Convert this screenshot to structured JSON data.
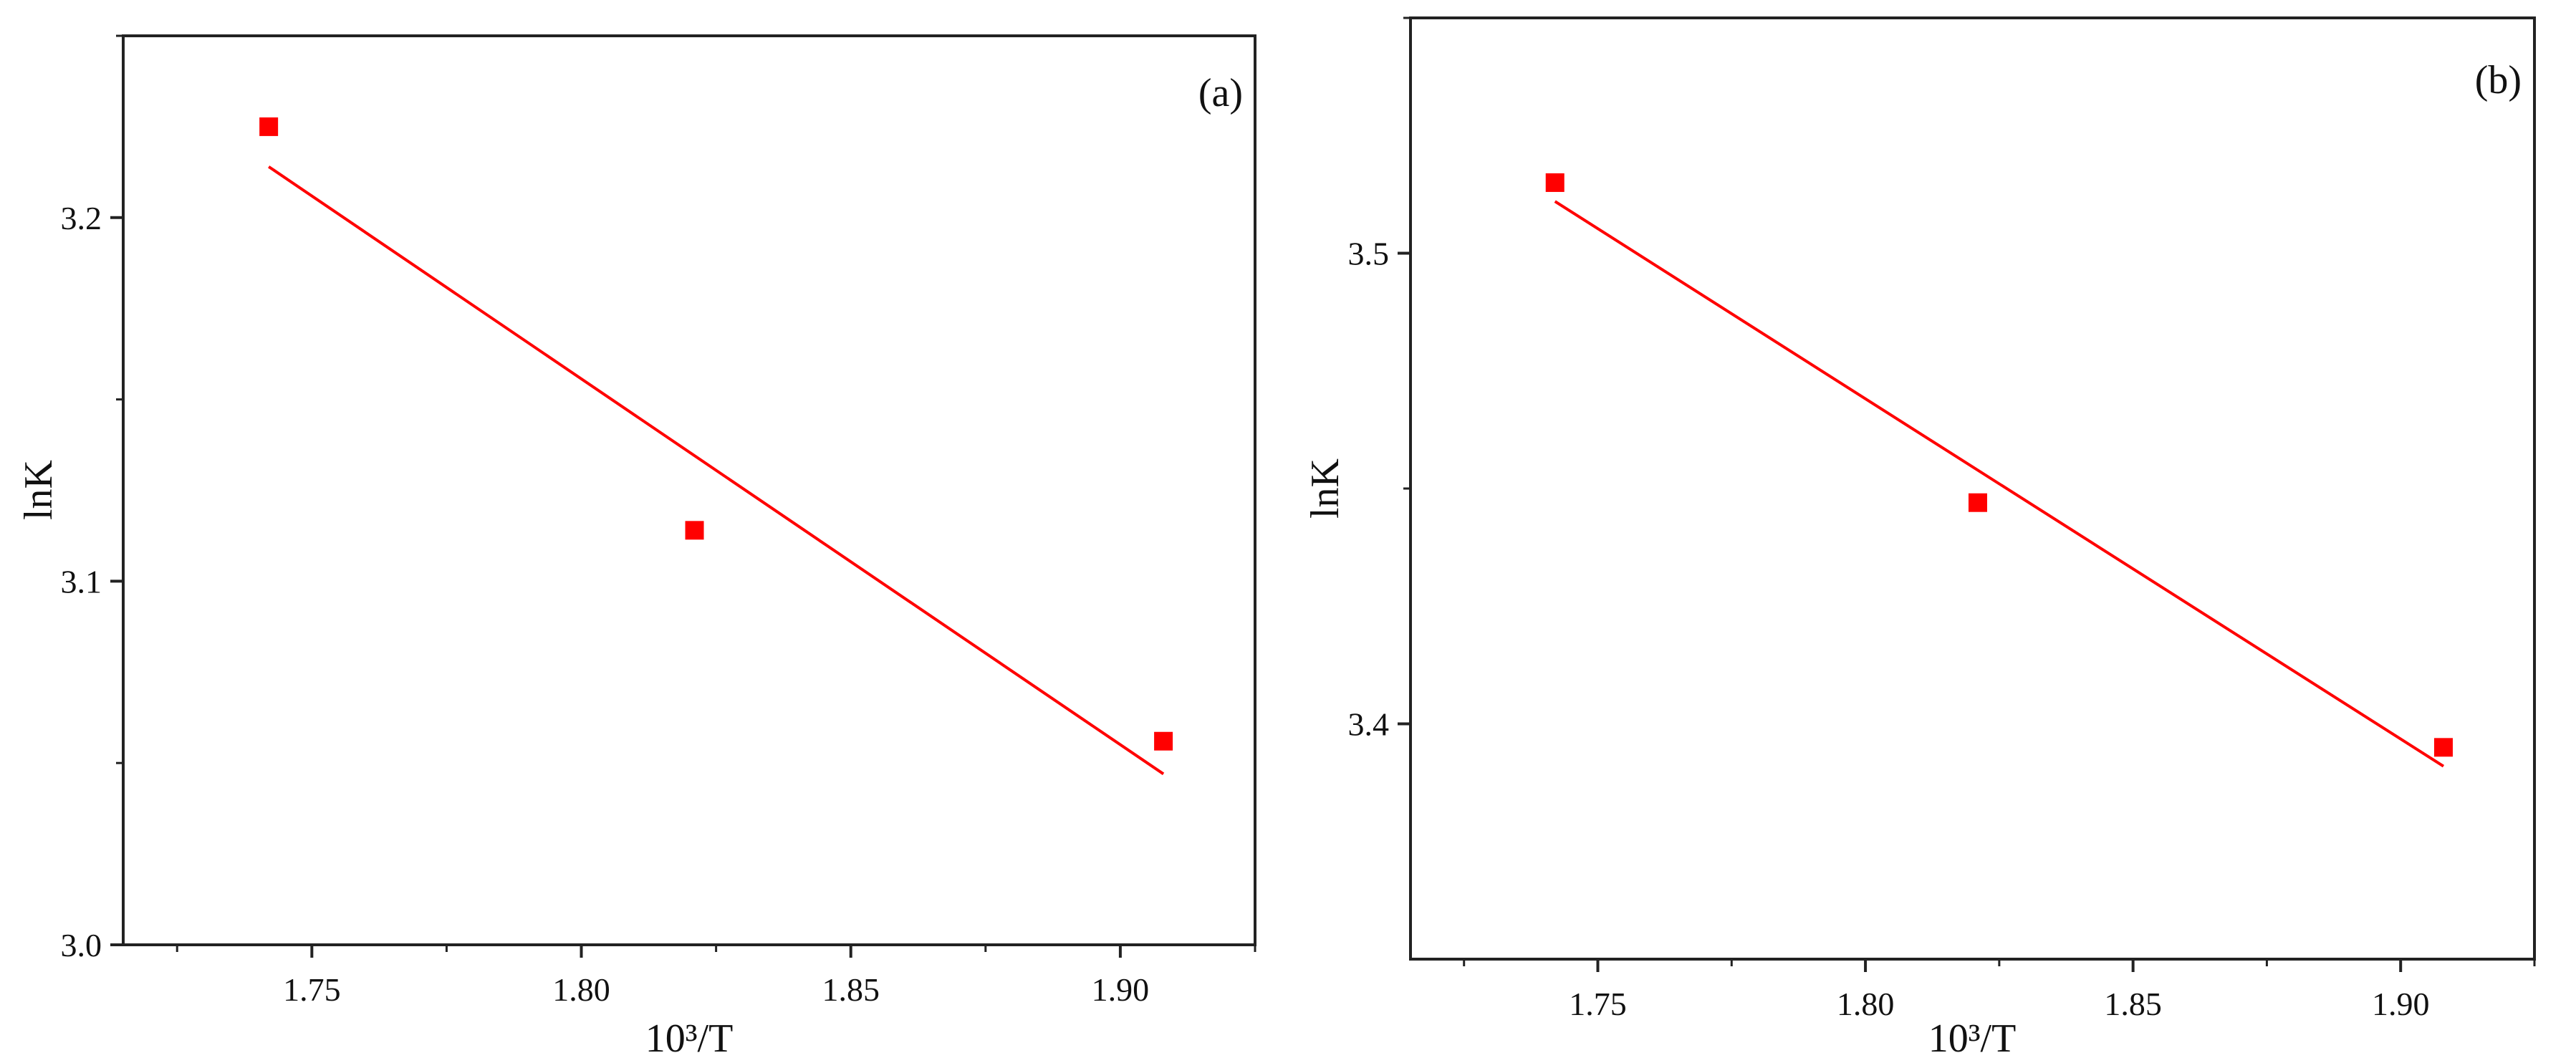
{
  "chart_data": [
    {
      "type": "scatter",
      "panel_label": "(a)",
      "xlabel": "10³/T",
      "ylabel": "lnK",
      "xlim": [
        1.715,
        1.925
      ],
      "ylim": [
        3.0,
        3.25
      ],
      "xticks": [
        1.75,
        1.8,
        1.85,
        1.9
      ],
      "xtick_labels": [
        "1.75",
        "1.80",
        "1.85",
        "1.90"
      ],
      "yticks": [
        3.0,
        3.1,
        3.2
      ],
      "ytick_labels": [
        "3.0",
        "3.1",
        "3.2"
      ],
      "grid": false,
      "marker_color": "#ff0000",
      "line_color": "#ff0000",
      "series": [
        {
          "x": [
            1.742,
            1.821,
            1.908
          ],
          "y": [
            3.225,
            3.114,
            3.056
          ]
        }
      ],
      "fit_line": {
        "x": [
          1.742,
          1.908
        ],
        "y": [
          3.214,
          3.047
        ]
      }
    },
    {
      "type": "scatter",
      "panel_label": "(b)",
      "xlabel": "10³/T",
      "ylabel": "lnK",
      "xlim": [
        1.715,
        1.925
      ],
      "ylim": [
        3.35,
        3.55
      ],
      "xticks": [
        1.75,
        1.8,
        1.85,
        1.9
      ],
      "xtick_labels": [
        "1.75",
        "1.80",
        "1.85",
        "1.90"
      ],
      "yticks": [
        3.4,
        3.5
      ],
      "ytick_labels": [
        "3.4",
        "3.5"
      ],
      "grid": false,
      "marker_color": "#ff0000",
      "line_color": "#ff0000",
      "series": [
        {
          "x": [
            1.742,
            1.821,
            1.908
          ],
          "y": [
            3.515,
            3.447,
            3.395
          ]
        }
      ],
      "fit_line": {
        "x": [
          1.742,
          1.908
        ],
        "y": [
          3.511,
          3.391
        ]
      }
    }
  ]
}
